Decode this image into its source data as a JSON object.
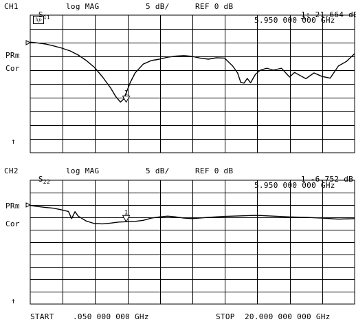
{
  "chart_data": [
    {
      "type": "line",
      "channel": "CH1",
      "param_main": "S",
      "param_sub": "11",
      "format": "log MAG",
      "scale": "5 dB/",
      "ref": "REF 0 dB",
      "marker_no": "1",
      "marker_readout": ":-21.664 dB",
      "marker_freq": "5.950 000 000 GHz",
      "side_labels": [
        "PRm",
        "Cor"
      ],
      "arrow_glyph": "↑",
      "marker_tag": "1",
      "grid": true,
      "xlim": [
        0.05,
        20.0
      ],
      "ylim": [
        -40,
        10
      ],
      "ref_value": 0,
      "marker_x": 5.95,
      "marker_y": -21.664,
      "x": [
        0.05,
        0.5,
        1.0,
        1.5,
        2.0,
        2.5,
        3.0,
        3.5,
        4.0,
        4.5,
        5.0,
        5.3,
        5.6,
        5.8,
        6.0,
        6.2,
        6.5,
        7.0,
        7.5,
        8.0,
        8.5,
        9.0,
        9.5,
        10.0,
        10.5,
        11.0,
        11.5,
        12.0,
        12.5,
        12.8,
        13.0,
        13.2,
        13.4,
        13.6,
        13.9,
        14.2,
        14.6,
        15.0,
        15.5,
        16.0,
        16.3,
        16.6,
        17.0,
        17.5,
        18.0,
        18.5,
        19.0,
        19.5,
        20.0
      ],
      "y": [
        0.2,
        -0.1,
        -0.5,
        -1.2,
        -2.0,
        -3.0,
        -4.5,
        -6.5,
        -9.0,
        -12.5,
        -16.5,
        -19.5,
        -21.6,
        -20.5,
        -17.5,
        -14.5,
        -11.0,
        -7.8,
        -6.5,
        -6.0,
        -5.3,
        -4.9,
        -4.7,
        -5.0,
        -5.6,
        -6.0,
        -5.5,
        -5.6,
        -8.5,
        -11.0,
        -14.5,
        -14.7,
        -13.0,
        -14.6,
        -11.5,
        -10.0,
        -9.3,
        -10.0,
        -9.3,
        -12.5,
        -10.8,
        -11.8,
        -13.1,
        -11.0,
        -12.3,
        -12.9,
        -8.5,
        -6.8,
        -4.0
      ]
    },
    {
      "type": "line",
      "channel": "CH2",
      "param_main": "S",
      "param_sub": "22",
      "format": "log MAG",
      "scale": "5 dB/",
      "ref": "REF 0 dB",
      "marker_no": "1",
      "marker_readout": "-6.752 dB",
      "marker_freq": "5.950 000 000 GHz",
      "side_labels": [
        "PRm",
        "Cor"
      ],
      "arrow_glyph": "↑",
      "marker_tag": "1",
      "grid": true,
      "xlim": [
        0.05,
        20.0
      ],
      "ylim": [
        -40,
        10
      ],
      "ref_value": 0,
      "marker_x": 5.95,
      "marker_y": -6.752,
      "x": [
        0.05,
        0.5,
        1.0,
        1.5,
        2.0,
        2.4,
        2.6,
        2.8,
        3.0,
        3.5,
        4.0,
        4.5,
        5.0,
        5.5,
        5.95,
        6.5,
        7.0,
        7.5,
        8.0,
        8.5,
        9.0,
        9.5,
        10.0,
        11.0,
        12.0,
        13.0,
        14.0,
        15.0,
        16.0,
        17.0,
        18.0,
        19.0,
        20.0
      ],
      "y": [
        -0.2,
        -0.6,
        -1.0,
        -1.3,
        -2.0,
        -2.6,
        -5.5,
        -2.7,
        -4.5,
        -6.5,
        -7.5,
        -7.6,
        -7.3,
        -6.9,
        -6.752,
        -6.6,
        -6.2,
        -5.3,
        -4.8,
        -4.5,
        -4.8,
        -5.3,
        -5.5,
        -5.0,
        -4.6,
        -4.4,
        -4.2,
        -4.5,
        -4.8,
        -5.0,
        -5.3,
        -5.7,
        -5.5
      ]
    }
  ],
  "footer": {
    "start_label": "START",
    "start_value": ".050 000 000 GHz",
    "stop_label": "STOP",
    "stop_value": "20.000 000 000 GHz"
  },
  "logo_text": "hp"
}
